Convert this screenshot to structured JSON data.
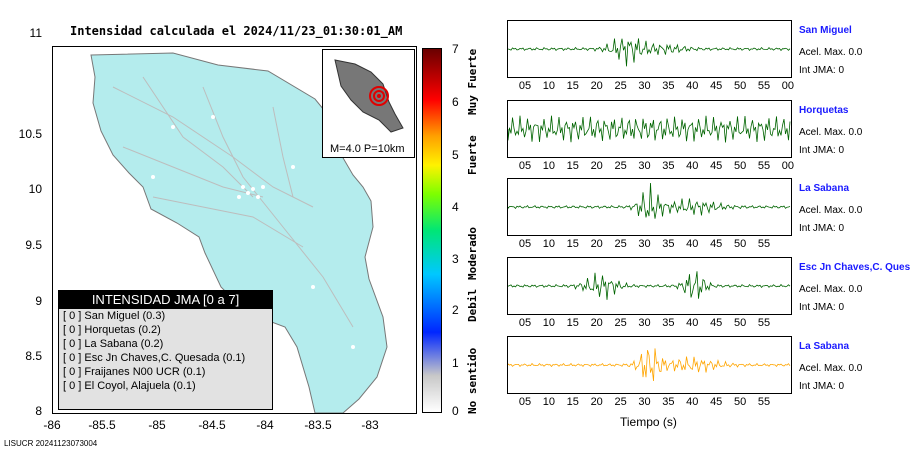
{
  "map": {
    "title": "Intensidad calculada el 2024/11/23_01:30:01_AM",
    "y_ticks": [
      "11",
      "10.5",
      "10",
      "9.5",
      "9",
      "8.5",
      "8"
    ],
    "x_ticks": [
      "-86",
      "-85.5",
      "-85",
      "-84.5",
      "-84",
      "-83.5",
      "-83"
    ],
    "inset_label": "M=4.0 P=10km",
    "land_color": "#b4eced"
  },
  "legend": {
    "title": "INTENSIDAD JMA [0 a 7]",
    "items": [
      "[ 0 ]  San Miguel (0.3)",
      "[ 0 ]  Horquetas (0.2)",
      "[ 0 ]  La Sabana (0.2)",
      "[ 0 ]  Esc Jn Chaves,C. Quesada (0.1)",
      "[ 0 ]  Fraijanes N00 UCR (0.1)",
      "[ 0 ]  El Coyol, Alajuela (0.1)"
    ]
  },
  "colorbar": {
    "ticks": [
      "7",
      "6",
      "5",
      "4",
      "3",
      "2",
      "1",
      "0"
    ],
    "labels": [
      "Muy Fuerte",
      "Fuerte",
      "Moderado",
      "Debil",
      "No sentido"
    ]
  },
  "stations": [
    {
      "name": "San Miguel",
      "accel": "Acel. Max. 0.0",
      "int": "Int JMA: 0",
      "color": "#006400",
      "ticks": [
        "05",
        "10",
        "15",
        "20",
        "25",
        "30",
        "35",
        "40",
        "45",
        "50",
        "55",
        "00"
      ]
    },
    {
      "name": "Horquetas",
      "accel": "Acel. Max. 0.0",
      "int": "Int JMA: 0",
      "color": "#006400",
      "ticks": [
        "05",
        "10",
        "15",
        "20",
        "25",
        "30",
        "35",
        "40",
        "45",
        "50",
        "55",
        "00"
      ]
    },
    {
      "name": "La Sabana",
      "accel": "Acel. Max. 0.0",
      "int": "Int JMA: 0",
      "color": "#006400",
      "ticks": [
        "05",
        "10",
        "15",
        "20",
        "25",
        "30",
        "35",
        "40",
        "45",
        "50",
        "55"
      ]
    },
    {
      "name": "Esc Jn Chaves,C. Ques",
      "accel": "Acel. Max. 0.0",
      "int": "Int JMA: 0",
      "color": "#006400",
      "ticks": [
        "05",
        "10",
        "15",
        "20",
        "25",
        "30",
        "35",
        "40",
        "45",
        "50",
        "55"
      ]
    },
    {
      "name": "La Sabana",
      "accel": "Acel. Max. 0.0",
      "int": "Int JMA: 0",
      "color": "#ffa500",
      "ticks": [
        "05",
        "10",
        "15",
        "20",
        "25",
        "30",
        "35",
        "40",
        "45",
        "50",
        "55"
      ]
    }
  ],
  "time_axis_label": "Tiempo (s)",
  "footer": "LISUCR 20241123073004"
}
